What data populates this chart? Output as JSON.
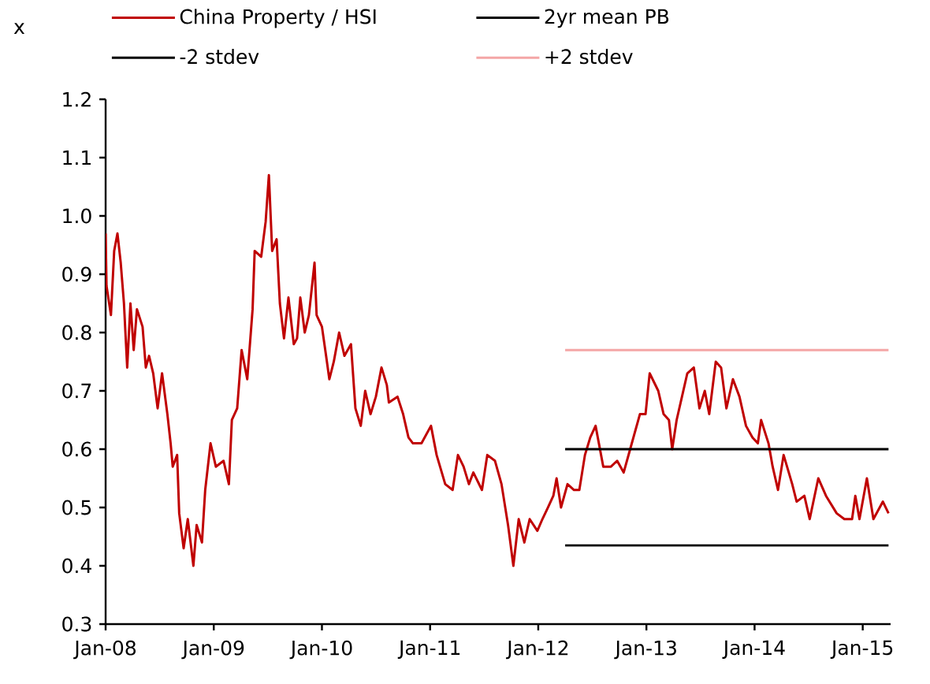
{
  "chart_data": {
    "type": "line",
    "ylabel": "x",
    "legend": "top",
    "marker": "none",
    "line_style": "solid",
    "grid": false,
    "xlim": [
      "2008-01-01",
      "2015-04-05"
    ],
    "ylim": [
      0.3,
      1.2
    ],
    "xticks": [
      {
        "value": "2008-01-01",
        "label": "Jan-08"
      },
      {
        "value": "2009-01-01",
        "label": "Jan-09"
      },
      {
        "value": "2010-01-01",
        "label": "Jan-10"
      },
      {
        "value": "2011-01-01",
        "label": "Jan-11"
      },
      {
        "value": "2012-01-01",
        "label": "Jan-12"
      },
      {
        "value": "2013-01-01",
        "label": "Jan-13"
      },
      {
        "value": "2014-01-01",
        "label": "Jan-14"
      },
      {
        "value": "2015-01-01",
        "label": "Jan-15"
      }
    ],
    "yticks": [
      0.3,
      0.4,
      0.5,
      0.6,
      0.7,
      0.8,
      0.9,
      {
        "value": 1,
        "label": "1.0"
      },
      1.1,
      1.2
    ],
    "series": [
      {
        "name": "China Property /  HSI",
        "color": "#c00000",
        "x": [
          "2008-01-01",
          "2008-01-04",
          "2008-01-19",
          "2008-01-30",
          "2008-02-10",
          "2008-02-21",
          "2008-03-03",
          "2008-03-14",
          "2008-03-25",
          "2008-04-05",
          "2008-04-16",
          "2008-05-05",
          "2008-05-16",
          "2008-05-27",
          "2008-06-10",
          "2008-06-25",
          "2008-07-10",
          "2008-07-28",
          "2008-08-08",
          "2008-08-15",
          "2008-08-30",
          "2008-09-06",
          "2008-09-21",
          "2008-10-05",
          "2008-10-24",
          "2008-11-04",
          "2008-11-22",
          "2008-12-03",
          "2008-12-21",
          "2009-01-08",
          "2009-02-03",
          "2009-02-21",
          "2009-03-03",
          "2009-03-21",
          "2009-04-05",
          "2009-04-24",
          "2009-05-12",
          "2009-05-19",
          "2009-06-10",
          "2009-06-25",
          "2009-07-06",
          "2009-07-17",
          "2009-08-01",
          "2009-08-12",
          "2009-08-26",
          "2009-09-10",
          "2009-09-28",
          "2009-10-09",
          "2009-10-20",
          "2009-11-04",
          "2009-11-18",
          "2009-12-07",
          "2009-12-14",
          "2010-01-01",
          "2010-01-15",
          "2010-01-26",
          "2010-02-10",
          "2010-02-28",
          "2010-03-18",
          "2010-04-09",
          "2010-04-24",
          "2010-05-12",
          "2010-05-27",
          "2010-06-14",
          "2010-07-02",
          "2010-07-21",
          "2010-08-08",
          "2010-08-15",
          "2010-09-13",
          "2010-10-02",
          "2010-10-20",
          "2010-11-04",
          "2010-12-03",
          "2011-01-04",
          "2011-01-23",
          "2011-02-21",
          "2011-03-18",
          "2011-04-05",
          "2011-04-24",
          "2011-05-12",
          "2011-05-27",
          "2011-06-25",
          "2011-07-13",
          "2011-08-08",
          "2011-08-30",
          "2011-09-21",
          "2011-10-09",
          "2011-10-27",
          "2011-11-15",
          "2011-12-03",
          "2011-12-29",
          "2012-01-15",
          "2012-02-03",
          "2012-02-21",
          "2012-03-03",
          "2012-03-18",
          "2012-04-09",
          "2012-05-01",
          "2012-05-19",
          "2012-06-07",
          "2012-06-25",
          "2012-07-13",
          "2012-08-08",
          "2012-09-03",
          "2012-09-24",
          "2012-10-16",
          "2012-11-07",
          "2012-12-10",
          "2012-12-29",
          "2013-01-12",
          "2013-02-10",
          "2013-02-28",
          "2013-03-18",
          "2013-03-29",
          "2013-04-13",
          "2013-05-01",
          "2013-05-19",
          "2013-06-10",
          "2013-06-29",
          "2013-07-17",
          "2013-08-01",
          "2013-08-23",
          "2013-09-10",
          "2013-09-28",
          "2013-10-20",
          "2013-11-11",
          "2013-12-03",
          "2013-12-25",
          "2014-01-12",
          "2014-01-23",
          "2014-02-17",
          "2014-03-03",
          "2014-03-21",
          "2014-04-09",
          "2014-05-08",
          "2014-05-23",
          "2014-06-18",
          "2014-07-06",
          "2014-08-04",
          "2014-08-30",
          "2014-10-05",
          "2014-10-31",
          "2014-11-26",
          "2014-12-07",
          "2014-12-21",
          "2015-01-15",
          "2015-02-06",
          "2015-03-10",
          "2015-03-29"
        ],
        "values": [
          0.97,
          0.88,
          0.83,
          0.94,
          0.97,
          0.92,
          0.85,
          0.74,
          0.85,
          0.77,
          0.84,
          0.81,
          0.74,
          0.76,
          0.73,
          0.67,
          0.73,
          0.66,
          0.61,
          0.57,
          0.59,
          0.49,
          0.43,
          0.48,
          0.4,
          0.47,
          0.44,
          0.53,
          0.61,
          0.57,
          0.58,
          0.54,
          0.65,
          0.67,
          0.77,
          0.72,
          0.84,
          0.94,
          0.93,
          0.99,
          1.07,
          0.94,
          0.96,
          0.85,
          0.79,
          0.86,
          0.78,
          0.79,
          0.86,
          0.8,
          0.83,
          0.92,
          0.83,
          0.81,
          0.76,
          0.72,
          0.75,
          0.8,
          0.76,
          0.78,
          0.67,
          0.64,
          0.7,
          0.66,
          0.69,
          0.74,
          0.71,
          0.68,
          0.69,
          0.66,
          0.62,
          0.61,
          0.61,
          0.64,
          0.59,
          0.54,
          0.53,
          0.59,
          0.57,
          0.54,
          0.56,
          0.53,
          0.59,
          0.58,
          0.54,
          0.47,
          0.4,
          0.48,
          0.44,
          0.48,
          0.46,
          0.48,
          0.5,
          0.52,
          0.55,
          0.5,
          0.54,
          0.53,
          0.53,
          0.59,
          0.62,
          0.64,
          0.57,
          0.57,
          0.58,
          0.56,
          0.6,
          0.66,
          0.66,
          0.73,
          0.7,
          0.66,
          0.65,
          0.6,
          0.65,
          0.69,
          0.73,
          0.74,
          0.67,
          0.7,
          0.66,
          0.75,
          0.74,
          0.67,
          0.72,
          0.69,
          0.64,
          0.62,
          0.61,
          0.65,
          0.61,
          0.57,
          0.53,
          0.59,
          0.54,
          0.51,
          0.52,
          0.48,
          0.55,
          0.52,
          0.49,
          0.48,
          0.48,
          0.52,
          0.48,
          0.55,
          0.48,
          0.51,
          0.49
        ]
      },
      {
        "name": "2yr mean PB",
        "color": "#000000",
        "x": [
          "2012-04-01",
          "2015-03-29"
        ],
        "values": [
          0.6,
          0.6
        ]
      },
      {
        "name": "-2 stdev",
        "color": "#000000",
        "x": [
          "2012-04-01",
          "2015-03-29"
        ],
        "values": [
          0.435,
          0.435
        ]
      },
      {
        "name": "+2 stdev",
        "color": "#f4a6a6",
        "x": [
          "2012-04-01",
          "2015-03-29"
        ],
        "values": [
          0.77,
          0.77
        ]
      }
    ]
  }
}
